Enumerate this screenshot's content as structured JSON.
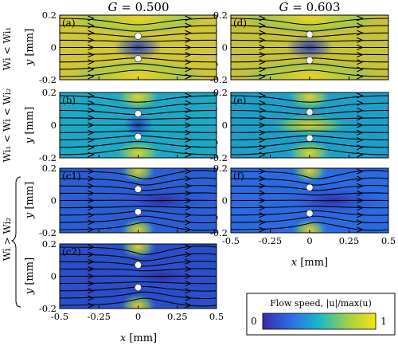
{
  "headers": {
    "left_prefix": "G",
    "left_value": " = 0.500",
    "right_prefix": "G",
    "right_value": " = 0.603"
  },
  "row_labels": {
    "row1": "Wi < Wi₁",
    "row2": "Wi₁ < Wi < Wi₂",
    "row34": "Wi > Wi₂"
  },
  "axis": {
    "y_label_var": "y",
    "y_label_unit": " [mm]",
    "x_label_var": "x",
    "x_label_unit": " [mm]",
    "y_ticks": [
      "0.2",
      "0",
      "-0.2"
    ],
    "x_ticks": [
      "-0.5",
      "-0.25",
      "0",
      "0.25",
      "0.5"
    ]
  },
  "panel_labels": [
    "(a)",
    "(b)",
    "(c1)",
    "(c2)",
    "(d)",
    "(e)",
    "(f)"
  ],
  "colorbar": {
    "title": "Flow speed, |u|/max(u)",
    "min": "0",
    "max": "1"
  },
  "colors": {
    "cmap_low": "#3a2aa8",
    "cmap_mid": "#19b8c8",
    "cmap_high": "#f5e30f",
    "streamline": "#000000",
    "cylinder": "#ffffff"
  },
  "chart_data": [
    {
      "type": "heatmap",
      "panel": "(a)",
      "G": 0.5,
      "regime": "Wi < Wi1",
      "xlim": [
        -0.5,
        0.5
      ],
      "ylim": [
        -0.2,
        0.2
      ],
      "cylinders_y": [
        0.07,
        -0.07
      ]
    },
    {
      "type": "heatmap",
      "panel": "(b)",
      "G": 0.5,
      "regime": "Wi1 < Wi < Wi2",
      "xlim": [
        -0.5,
        0.5
      ],
      "ylim": [
        -0.2,
        0.2
      ],
      "cylinders_y": [
        0.07,
        -0.07
      ]
    },
    {
      "type": "heatmap",
      "panel": "(c1)",
      "G": 0.5,
      "regime": "Wi > Wi2",
      "xlim": [
        -0.5,
        0.5
      ],
      "ylim": [
        -0.2,
        0.2
      ],
      "cylinders_y": [
        0.07,
        -0.07
      ]
    },
    {
      "type": "heatmap",
      "panel": "(c2)",
      "G": 0.5,
      "regime": "Wi > Wi2",
      "xlim": [
        -0.5,
        0.5
      ],
      "ylim": [
        -0.2,
        0.2
      ],
      "cylinders_y": [
        0.07,
        -0.07
      ]
    },
    {
      "type": "heatmap",
      "panel": "(d)",
      "G": 0.603,
      "regime": "Wi < Wi1",
      "xlim": [
        -0.5,
        0.5
      ],
      "ylim": [
        -0.2,
        0.2
      ],
      "cylinders_y": [
        0.08,
        -0.08
      ]
    },
    {
      "type": "heatmap",
      "panel": "(e)",
      "G": 0.603,
      "regime": "Wi1 < Wi < Wi2",
      "xlim": [
        -0.5,
        0.5
      ],
      "ylim": [
        -0.2,
        0.2
      ],
      "cylinders_y": [
        0.08,
        -0.08
      ]
    },
    {
      "type": "heatmap",
      "panel": "(f)",
      "G": 0.603,
      "regime": "Wi > Wi2",
      "xlim": [
        -0.5,
        0.5
      ],
      "ylim": [
        -0.2,
        0.2
      ],
      "cylinders_y": [
        0.08,
        -0.08
      ]
    }
  ]
}
